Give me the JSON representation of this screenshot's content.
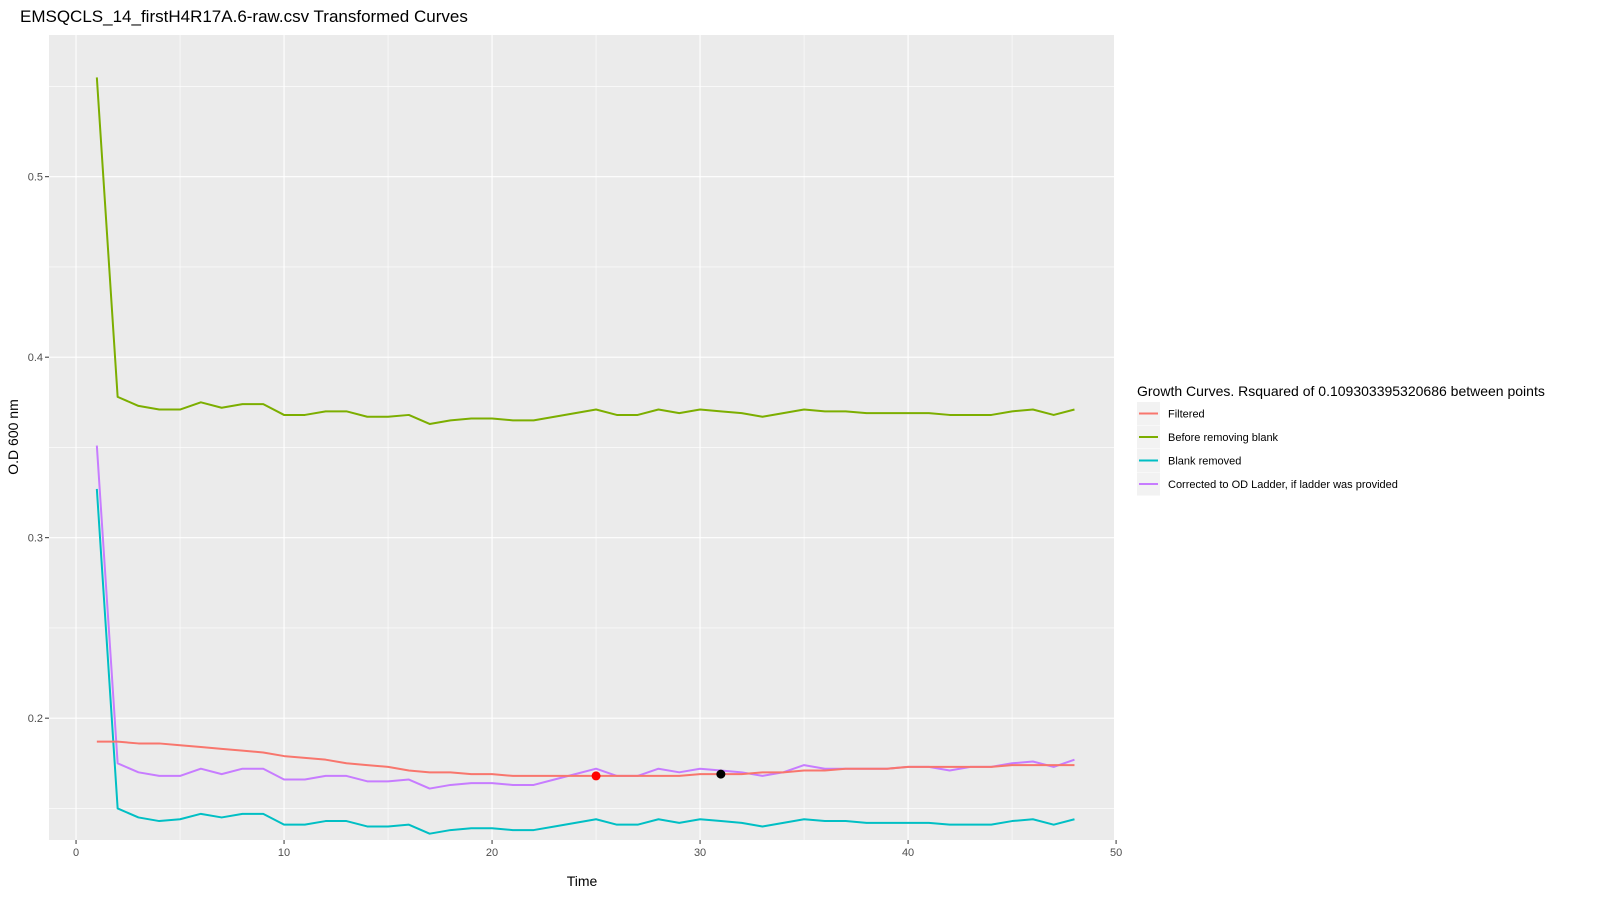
{
  "chart_data": {
    "type": "line",
    "title": "EMSQCLS_14_firstH4R17A.6-raw.csv Transformed Curves",
    "xlabel": "Time",
    "ylabel": "O.D 600 nm",
    "xlim": [
      -1.3,
      49.9
    ],
    "ylim": [
      0.1325,
      0.5785
    ],
    "x_ticks": [
      0,
      10,
      20,
      30,
      40,
      50
    ],
    "y_ticks": [
      0.2,
      0.3,
      0.4,
      0.5
    ],
    "x_tick_labels": [
      "0",
      "10",
      "20",
      "30",
      "40",
      "50"
    ],
    "y_tick_labels": [
      "0.2",
      "0.3",
      "0.4",
      "0.5"
    ],
    "grid": true,
    "legend": {
      "title": "Growth Curves. Rsquared of 0.109303395320686 between points",
      "position": "right"
    },
    "x": [
      1,
      2,
      3,
      4,
      5,
      6,
      7,
      8,
      9,
      10,
      11,
      12,
      13,
      14,
      15,
      16,
      17,
      18,
      19,
      20,
      21,
      22,
      23,
      24,
      25,
      26,
      27,
      28,
      29,
      30,
      31,
      32,
      33,
      34,
      35,
      36,
      37,
      38,
      39,
      40,
      41,
      42,
      43,
      44,
      45,
      46,
      47,
      48
    ],
    "series": [
      {
        "name": "Filtered",
        "color": "#F8766D",
        "values": [
          0.187,
          0.187,
          0.186,
          0.186,
          0.185,
          0.184,
          0.183,
          0.182,
          0.181,
          0.179,
          0.178,
          0.177,
          0.175,
          0.174,
          0.173,
          0.171,
          0.17,
          0.17,
          0.169,
          0.169,
          0.168,
          0.168,
          0.168,
          0.168,
          0.168,
          0.168,
          0.168,
          0.168,
          0.168,
          0.169,
          0.169,
          0.169,
          0.17,
          0.17,
          0.171,
          0.171,
          0.172,
          0.172,
          0.172,
          0.173,
          0.173,
          0.173,
          0.173,
          0.173,
          0.174,
          0.174,
          0.174,
          0.174
        ]
      },
      {
        "name": "Before removing blank",
        "color": "#7CAE00",
        "values": [
          0.555,
          0.378,
          0.373,
          0.371,
          0.371,
          0.375,
          0.372,
          0.374,
          0.374,
          0.368,
          0.368,
          0.37,
          0.37,
          0.367,
          0.367,
          0.368,
          0.363,
          0.365,
          0.366,
          0.366,
          0.365,
          0.365,
          0.367,
          0.369,
          0.371,
          0.368,
          0.368,
          0.371,
          0.369,
          0.371,
          0.37,
          0.369,
          0.367,
          0.369,
          0.371,
          0.37,
          0.37,
          0.369,
          0.369,
          0.369,
          0.369,
          0.368,
          0.368,
          0.368,
          0.37,
          0.371,
          0.368,
          0.371
        ]
      },
      {
        "name": "Blank removed",
        "color": "#00BFC4",
        "values": [
          0.327,
          0.15,
          0.145,
          0.143,
          0.144,
          0.147,
          0.145,
          0.147,
          0.147,
          0.141,
          0.141,
          0.143,
          0.143,
          0.14,
          0.14,
          0.141,
          0.136,
          0.138,
          0.139,
          0.139,
          0.138,
          0.138,
          0.14,
          0.142,
          0.144,
          0.141,
          0.141,
          0.144,
          0.142,
          0.144,
          0.143,
          0.142,
          0.14,
          0.142,
          0.144,
          0.143,
          0.143,
          0.142,
          0.142,
          0.142,
          0.142,
          0.141,
          0.141,
          0.141,
          0.143,
          0.144,
          0.141,
          0.144
        ]
      },
      {
        "name": "Corrected to OD Ladder, if ladder was provided",
        "color": "#C77CFF",
        "values": [
          0.351,
          0.175,
          0.17,
          0.168,
          0.168,
          0.172,
          0.169,
          0.172,
          0.172,
          0.166,
          0.166,
          0.168,
          0.168,
          0.165,
          0.165,
          0.166,
          0.161,
          0.163,
          0.164,
          0.164,
          0.163,
          0.163,
          0.166,
          0.169,
          0.172,
          0.168,
          0.168,
          0.172,
          0.17,
          0.172,
          0.171,
          0.17,
          0.168,
          0.17,
          0.174,
          0.172,
          0.172,
          0.172,
          0.172,
          0.173,
          0.173,
          0.171,
          0.173,
          0.173,
          0.175,
          0.176,
          0.173,
          0.177
        ]
      }
    ],
    "points": [
      {
        "x": 25,
        "y": 0.168,
        "color": "#FF0000"
      },
      {
        "x": 31,
        "y": 0.169,
        "color": "#000000"
      }
    ]
  }
}
